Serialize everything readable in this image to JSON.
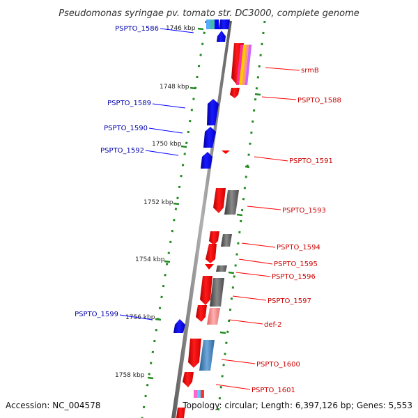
{
  "title": "Pseudomonas syringae pv. tomato str. DC3000, complete genome",
  "footer": {
    "accession": "Accession: NC_004578",
    "summary": "Topology: circular; Length: 6,397,126 bp; Genes: 5,553"
  },
  "ticks": [
    "1746 kbp",
    "1748 kbp",
    "1750 kbp",
    "1752 kbp",
    "1754 kbp",
    "1756 kbp",
    "1758 kbp"
  ],
  "genes_forward": [
    "srmB",
    "PSPTO_1588",
    "PSPTO_1591",
    "PSPTO_1593",
    "PSPTO_1594",
    "PSPTO_1595",
    "PSPTO_1596",
    "PSPTO_1597",
    "def-2",
    "PSPTO_1600",
    "PSPTO_1601"
  ],
  "genes_reverse": [
    "PSPTO_1586",
    "PSPTO_1589",
    "PSPTO_1590",
    "PSPTO_1592",
    "PSPTO_1599"
  ],
  "colors": {
    "forward_gene": "#ff0000",
    "reverse_gene": "#0000ff",
    "backbone": "#808080",
    "tick_marks": "#228b22",
    "forward_label": "#cc0000",
    "reverse_label": "#0000aa"
  }
}
